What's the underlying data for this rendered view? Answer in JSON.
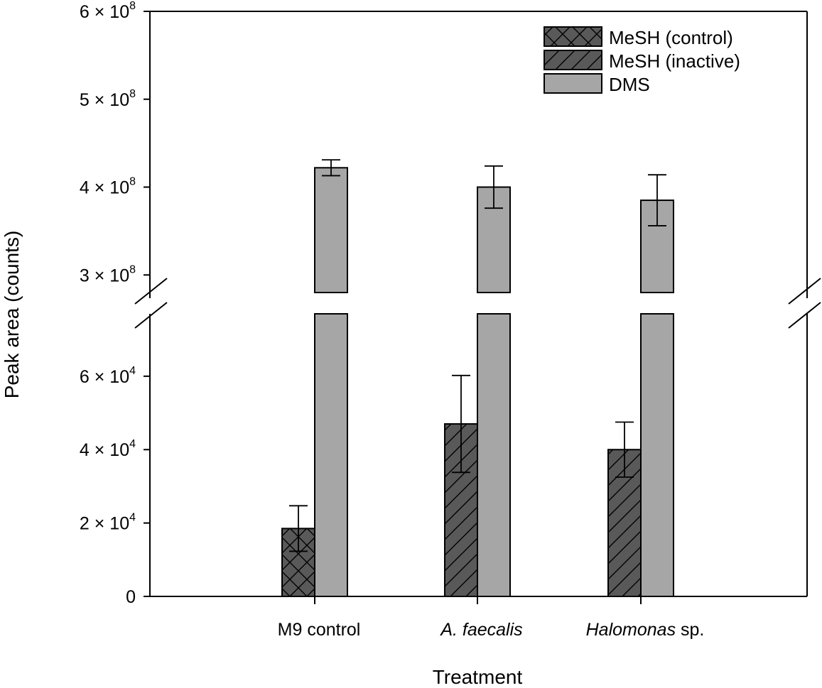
{
  "chart_data": {
    "type": "bar",
    "xlabel": "Treatment",
    "ylabel": "Peak area (counts)",
    "axis_break": true,
    "categories": [
      {
        "parts": [
          {
            "text": "M9 control",
            "italic": false
          }
        ]
      },
      {
        "parts": [
          {
            "text": "A. faecalis",
            "italic": true
          }
        ]
      },
      {
        "parts": [
          {
            "text": "Halomonas",
            "italic": true
          },
          {
            "text": " sp.",
            "italic": false
          }
        ]
      }
    ],
    "lower_axis": {
      "ylim": [
        0,
        77000
      ],
      "ticks": [
        {
          "value": 0,
          "label": "0"
        },
        {
          "value": 20000,
          "label": "2 × 10",
          "exp": "4"
        },
        {
          "value": 40000,
          "label": "4 × 10",
          "exp": "4"
        },
        {
          "value": 60000,
          "label": "6 × 10",
          "exp": "4"
        }
      ]
    },
    "upper_axis": {
      "ylim": [
        280000000,
        600000000
      ],
      "ticks": [
        {
          "value": 300000000,
          "label": "3 × 10",
          "exp": "8"
        },
        {
          "value": 400000000,
          "label": "4 × 10",
          "exp": "8"
        },
        {
          "value": 500000000,
          "label": "5 × 10",
          "exp": "8"
        },
        {
          "value": 600000000,
          "label": "6 × 10",
          "exp": "8"
        }
      ]
    },
    "legend": {
      "position": "top-right",
      "entries": [
        {
          "label": "MeSH (control)",
          "pattern": "crosshatch",
          "color": "#595959"
        },
        {
          "label": "MeSH (inactive)",
          "pattern": "diagonal",
          "color": "#595959"
        },
        {
          "label": "DMS",
          "pattern": "solid",
          "color": "#a6a6a6"
        }
      ]
    },
    "series": [
      {
        "name": "MeSH (control)",
        "values": [
          18500,
          null,
          null
        ],
        "errors": [
          6200,
          null,
          null
        ]
      },
      {
        "name": "MeSH (inactive)",
        "values": [
          null,
          47000,
          40000
        ],
        "errors": [
          null,
          13200,
          7500
        ]
      },
      {
        "name": "DMS",
        "values": [
          422000000,
          400000000,
          385000000
        ],
        "errors": [
          9000000,
          24000000,
          29000000
        ]
      }
    ]
  }
}
